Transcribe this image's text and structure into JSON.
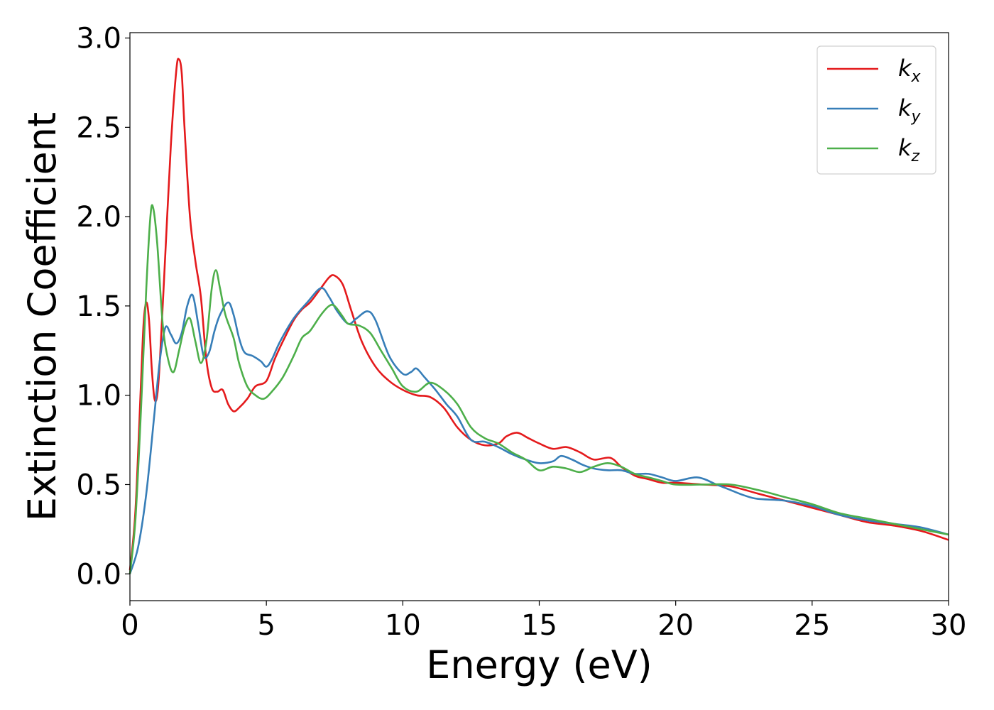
{
  "chart_data": {
    "type": "line",
    "xlabel": "Energy (eV)",
    "ylabel": "Extinction Coefficient",
    "xlim": [
      0,
      30
    ],
    "ylim": [
      -0.15,
      3.03
    ],
    "xticks": [
      0,
      5,
      10,
      15,
      20,
      25,
      30
    ],
    "xtick_labels": [
      "0",
      "5",
      "10",
      "15",
      "20",
      "25",
      "30"
    ],
    "yticks": [
      0.0,
      0.5,
      1.0,
      1.5,
      2.0,
      2.5,
      3.0
    ],
    "ytick_labels": [
      "0.0",
      "0.5",
      "1.0",
      "1.5",
      "2.0",
      "2.5",
      "3.0"
    ],
    "grid": false,
    "legend_position": "top-right",
    "series": [
      {
        "name": "k",
        "subscript": "x",
        "color": "#e41a1c",
        "x": [
          0,
          0.2,
          0.4,
          0.5,
          0.6,
          0.7,
          0.8,
          0.9,
          1.0,
          1.1,
          1.3,
          1.5,
          1.7,
          1.8,
          1.9,
          2.0,
          2.2,
          2.4,
          2.6,
          2.8,
          3.0,
          3.2,
          3.4,
          3.6,
          3.8,
          4.0,
          4.3,
          4.6,
          5.0,
          5.3,
          5.6,
          6.0,
          6.3,
          6.6,
          7.0,
          7.3,
          7.5,
          7.8,
          8.1,
          8.5,
          9.0,
          9.5,
          10.0,
          10.5,
          11.0,
          11.5,
          12.0,
          12.5,
          13.0,
          13.5,
          13.8,
          14.2,
          14.6,
          15.0,
          15.5,
          16.0,
          16.5,
          17.0,
          17.6,
          18.0,
          18.5,
          19.0,
          19.5,
          20.0,
          21.0,
          22.0,
          23.0,
          24.0,
          25.0,
          26.0,
          27.0,
          28.0,
          29.0,
          30.0
        ],
        "y": [
          0.02,
          0.35,
          1.05,
          1.4,
          1.52,
          1.42,
          1.15,
          0.98,
          1.0,
          1.2,
          1.8,
          2.4,
          2.82,
          2.88,
          2.8,
          2.5,
          2.0,
          1.75,
          1.55,
          1.2,
          1.04,
          1.02,
          1.03,
          0.95,
          0.91,
          0.93,
          0.98,
          1.05,
          1.08,
          1.2,
          1.3,
          1.42,
          1.48,
          1.52,
          1.6,
          1.66,
          1.67,
          1.62,
          1.48,
          1.3,
          1.16,
          1.08,
          1.03,
          1.0,
          0.99,
          0.93,
          0.82,
          0.75,
          0.72,
          0.73,
          0.77,
          0.79,
          0.76,
          0.73,
          0.7,
          0.71,
          0.68,
          0.64,
          0.65,
          0.6,
          0.55,
          0.53,
          0.51,
          0.51,
          0.5,
          0.49,
          0.45,
          0.41,
          0.37,
          0.33,
          0.29,
          0.27,
          0.24,
          0.19
        ]
      },
      {
        "name": "k",
        "subscript": "y",
        "color": "#377eb8",
        "x": [
          0,
          0.3,
          0.6,
          0.9,
          1.1,
          1.3,
          1.5,
          1.7,
          1.9,
          2.1,
          2.3,
          2.5,
          2.7,
          2.9,
          3.1,
          3.3,
          3.6,
          3.8,
          4.0,
          4.2,
          4.5,
          4.8,
          5.0,
          5.2,
          5.5,
          6.0,
          6.5,
          7.0,
          7.3,
          7.6,
          8.0,
          8.3,
          8.7,
          9.0,
          9.5,
          10.0,
          10.3,
          10.5,
          10.8,
          11.2,
          11.6,
          12.0,
          12.5,
          13.0,
          13.5,
          14.0,
          14.5,
          15.0,
          15.5,
          15.8,
          16.2,
          16.6,
          17.0,
          17.5,
          18.0,
          18.5,
          19.0,
          19.5,
          20.0,
          20.8,
          21.5,
          22.0,
          22.5,
          23.0,
          24.0,
          25.0,
          26.0,
          27.0,
          28.0,
          29.0,
          30.0
        ],
        "y": [
          0.0,
          0.15,
          0.45,
          0.9,
          1.2,
          1.38,
          1.34,
          1.29,
          1.35,
          1.5,
          1.56,
          1.4,
          1.22,
          1.24,
          1.36,
          1.45,
          1.52,
          1.45,
          1.32,
          1.24,
          1.22,
          1.19,
          1.16,
          1.2,
          1.3,
          1.43,
          1.52,
          1.6,
          1.55,
          1.47,
          1.4,
          1.43,
          1.47,
          1.42,
          1.22,
          1.12,
          1.13,
          1.15,
          1.1,
          1.03,
          0.95,
          0.88,
          0.75,
          0.74,
          0.71,
          0.67,
          0.64,
          0.62,
          0.63,
          0.66,
          0.64,
          0.61,
          0.59,
          0.58,
          0.58,
          0.56,
          0.56,
          0.54,
          0.52,
          0.54,
          0.5,
          0.47,
          0.44,
          0.42,
          0.41,
          0.38,
          0.33,
          0.3,
          0.28,
          0.26,
          0.22
        ]
      },
      {
        "name": "k",
        "subscript": "z",
        "color": "#4daf4a",
        "x": [
          0,
          0.2,
          0.4,
          0.6,
          0.75,
          0.85,
          1.0,
          1.2,
          1.4,
          1.6,
          1.8,
          2.0,
          2.2,
          2.4,
          2.6,
          2.8,
          3.0,
          3.15,
          3.3,
          3.5,
          3.8,
          4.0,
          4.3,
          4.6,
          4.9,
          5.2,
          5.6,
          6.0,
          6.3,
          6.6,
          7.0,
          7.3,
          7.5,
          7.8,
          8.0,
          8.4,
          8.8,
          9.2,
          9.6,
          10.0,
          10.5,
          11.0,
          11.5,
          12.0,
          12.5,
          13.0,
          13.5,
          14.0,
          14.5,
          15.0,
          15.5,
          16.0,
          16.5,
          17.0,
          17.5,
          18.0,
          18.5,
          19.0,
          19.5,
          20.0,
          21.0,
          22.0,
          23.0,
          24.0,
          25.0,
          26.0,
          27.0,
          28.0,
          29.0,
          30.0
        ],
        "y": [
          0.0,
          0.3,
          0.9,
          1.6,
          2.0,
          2.05,
          1.85,
          1.4,
          1.2,
          1.13,
          1.25,
          1.38,
          1.43,
          1.3,
          1.18,
          1.3,
          1.6,
          1.7,
          1.6,
          1.45,
          1.32,
          1.18,
          1.05,
          1.0,
          0.98,
          1.02,
          1.1,
          1.22,
          1.32,
          1.36,
          1.45,
          1.5,
          1.5,
          1.44,
          1.4,
          1.39,
          1.35,
          1.25,
          1.15,
          1.05,
          1.02,
          1.07,
          1.03,
          0.95,
          0.82,
          0.76,
          0.73,
          0.68,
          0.64,
          0.58,
          0.6,
          0.59,
          0.57,
          0.6,
          0.62,
          0.6,
          0.56,
          0.54,
          0.52,
          0.5,
          0.5,
          0.5,
          0.47,
          0.43,
          0.39,
          0.34,
          0.31,
          0.28,
          0.25,
          0.22
        ]
      }
    ]
  }
}
